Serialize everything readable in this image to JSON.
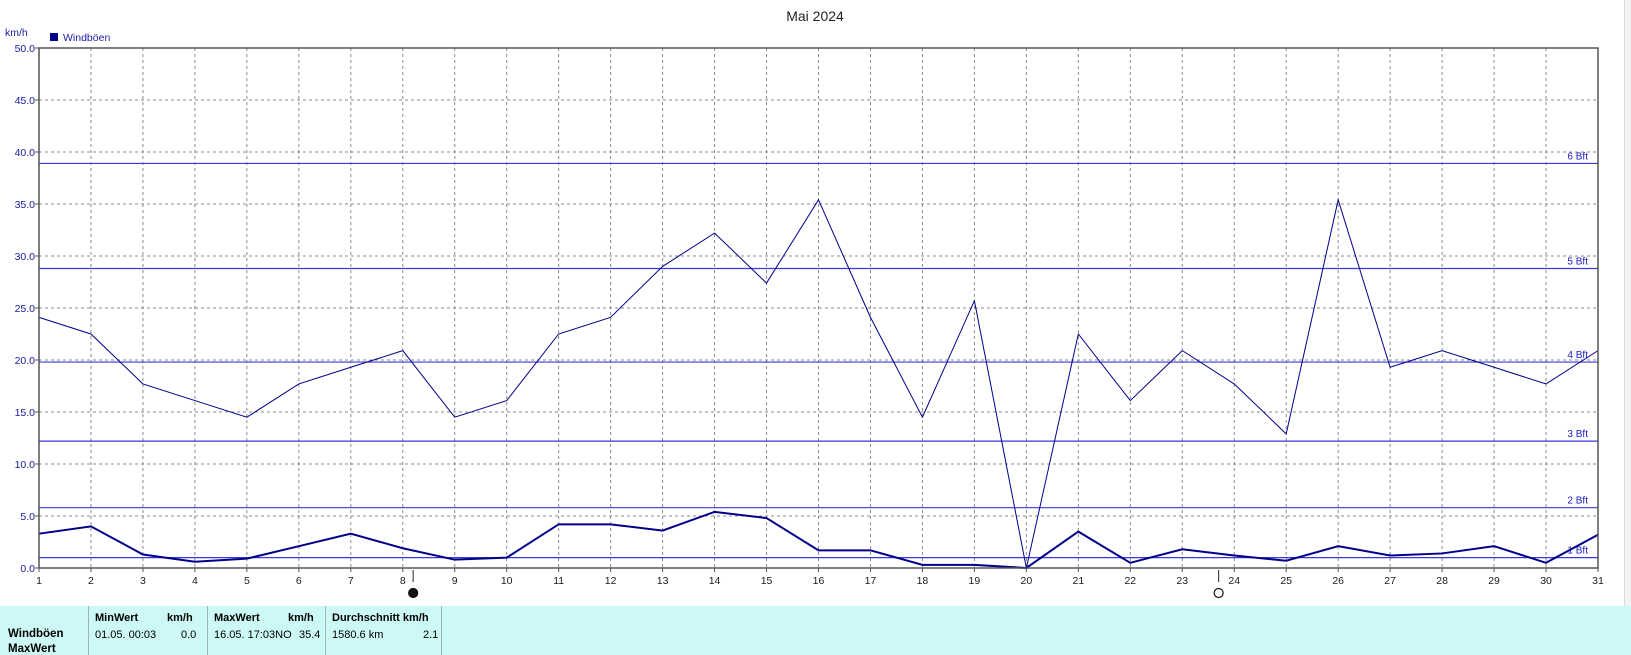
{
  "chart_data": {
    "type": "line",
    "title": "Mai 2024",
    "ylabel": "km/h",
    "xlabel": "",
    "ylim": [
      0,
      50
    ],
    "xlim": [
      1,
      31
    ],
    "yticks": [
      "0.0",
      "5.0",
      "10.0",
      "15.0",
      "20.0",
      "25.0",
      "30.0",
      "35.0",
      "40.0",
      "45.0",
      "50.0"
    ],
    "xticks": [
      "1",
      "2",
      "3",
      "4",
      "5",
      "6",
      "7",
      "8",
      "9",
      "10",
      "11",
      "12",
      "13",
      "14",
      "15",
      "16",
      "17",
      "18",
      "19",
      "20",
      "21",
      "22",
      "23",
      "24",
      "25",
      "26",
      "27",
      "28",
      "29",
      "30",
      "31"
    ],
    "grid": true,
    "legend": {
      "position": "top-left",
      "entries": [
        "Windböen"
      ]
    },
    "series": [
      {
        "name": "Windböen",
        "color": "#00008b",
        "x": [
          1,
          2,
          3,
          4,
          5,
          6,
          7,
          8,
          9,
          10,
          11,
          12,
          13,
          14,
          15,
          16,
          17,
          18,
          19,
          20,
          21,
          22,
          23,
          24,
          25,
          26,
          27,
          28,
          29,
          30,
          31
        ],
        "values": [
          24.1,
          22.5,
          17.7,
          16.1,
          14.5,
          17.7,
          19.3,
          20.9,
          14.5,
          16.1,
          22.5,
          24.1,
          29.0,
          32.2,
          27.4,
          35.4,
          24.1,
          14.5,
          25.7,
          0.0,
          22.5,
          16.1,
          20.9,
          17.7,
          12.9,
          35.4,
          19.3,
          20.9,
          19.3,
          17.7,
          20.9
        ]
      },
      {
        "name": "",
        "color": "#00008b",
        "x": [
          1,
          2,
          3,
          4,
          5,
          6,
          7,
          8,
          9,
          10,
          11,
          12,
          13,
          14,
          15,
          16,
          17,
          18,
          19,
          20,
          21,
          22,
          23,
          24,
          25,
          26,
          27,
          28,
          29,
          30,
          31
        ],
        "values": [
          3.3,
          4.0,
          1.3,
          0.6,
          0.9,
          2.1,
          3.3,
          1.9,
          0.8,
          1.0,
          4.2,
          4.2,
          3.6,
          5.4,
          4.8,
          1.7,
          1.7,
          0.3,
          0.3,
          0.0,
          3.5,
          0.5,
          1.8,
          1.2,
          0.7,
          2.1,
          1.2,
          1.4,
          2.1,
          0.5,
          3.2
        ]
      }
    ],
    "reference_lines": [
      {
        "label": "1 Bft",
        "value": 1.0
      },
      {
        "label": "2 Bft",
        "value": 5.8
      },
      {
        "label": "3 Bft",
        "value": 12.2
      },
      {
        "label": "4 Bft",
        "value": 19.8
      },
      {
        "label": "5 Bft",
        "value": 28.8
      },
      {
        "label": "6 Bft",
        "value": 38.9
      }
    ],
    "moon_phases": [
      {
        "day": 8.2,
        "phase": "new-moon"
      },
      {
        "day": 23.7,
        "phase": "full-moon"
      }
    ]
  },
  "stats_table": {
    "row_labels": [
      "Windböen",
      "MaxWert"
    ],
    "columns": [
      {
        "header": "MinWert",
        "unit": "km/h",
        "value": "01.05.  00:03",
        "unit_value": "0.0"
      },
      {
        "header": "MaxWert",
        "unit": "km/h",
        "value": "16.05.  17:03NO",
        "unit_value": "35.4"
      },
      {
        "header": "Durchschnitt km/h",
        "unit": "",
        "value": "1580.6 km",
        "unit_value": "2.1"
      }
    ]
  }
}
